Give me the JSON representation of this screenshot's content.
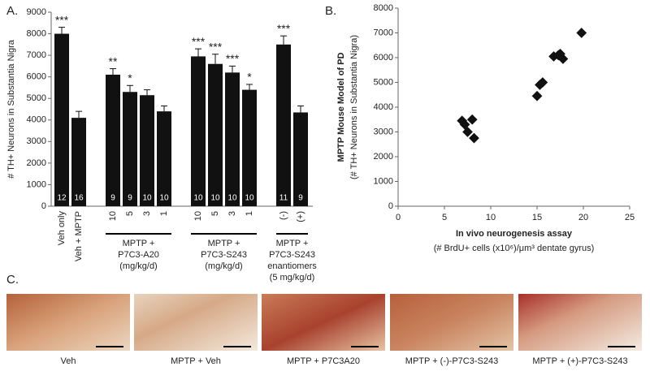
{
  "chart_data": [
    {
      "type": "bar",
      "panel_label": "A.",
      "ylabel": "# TH+ Neurons in Substantia Nigra",
      "categories": [
        "Veh only",
        "Veh + MPTP",
        "10",
        "5",
        "3",
        "1",
        "10",
        "5",
        "3",
        "1",
        "(-)",
        "(+)"
      ],
      "values": [
        8000,
        4100,
        6100,
        5300,
        5150,
        4400,
        6950,
        6600,
        6200,
        5400,
        7500,
        4350
      ],
      "errors": [
        300,
        300,
        280,
        300,
        250,
        250,
        350,
        450,
        300,
        250,
        400,
        300
      ],
      "annotations": [
        "***",
        null,
        "**",
        "*",
        null,
        null,
        "***",
        "***",
        "***",
        "*",
        "***",
        null
      ],
      "n": [
        "12",
        "16",
        "9",
        "9",
        "10",
        "10",
        "10",
        "10",
        "10",
        "10",
        "11",
        "9"
      ],
      "group_labels": [
        [
          "MPTP +",
          "P7C3-A20",
          "(mg/kg/d)"
        ],
        [
          "MPTP +",
          "P7C3-S243",
          "(mg/kg/d)"
        ],
        [
          "MPTP +",
          "P7C3-S243",
          "enantiomers",
          "(5 mg/kg/d)"
        ]
      ],
      "color": "#111111",
      "ylim": [
        0,
        9000
      ],
      "yticks": [
        0,
        1000,
        2000,
        3000,
        4000,
        5000,
        6000,
        7000,
        8000,
        9000
      ]
    },
    {
      "type": "scatter",
      "panel_label": "B.",
      "ylabel": [
        "MPTP Mouse Model of PD",
        "(# TH+ Neurons in Substantia Nigra)"
      ],
      "xlabel": [
        "In vivo neurogenesis assay",
        "(# BrdU+ cells (x10⁶)/μm³ dentate gyrus)"
      ],
      "x": [
        6.9,
        7.5,
        8.0,
        8.2,
        7.2,
        15.0,
        15.3,
        15.6,
        16.8,
        17.3,
        17.8,
        17.5,
        19.8
      ],
      "y": [
        3450,
        3000,
        3500,
        2750,
        3300,
        4450,
        4900,
        5000,
        6050,
        6100,
        5950,
        6150,
        7000
      ],
      "color": "#111111",
      "xlim": [
        0,
        25
      ],
      "xticks": [
        0,
        5,
        10,
        15,
        20,
        25
      ],
      "ylim": [
        0,
        8000
      ],
      "yticks": [
        0,
        1000,
        2000,
        3000,
        4000,
        5000,
        6000,
        7000,
        8000
      ]
    }
  ],
  "panel_c": {
    "label": "C.",
    "captions": [
      "Veh",
      "MPTP + Veh",
      "MPTP + P7C3A20",
      "MPTP + (-)-P7C3-S243",
      "MPTP + (+)-P7C3-S243"
    ]
  }
}
